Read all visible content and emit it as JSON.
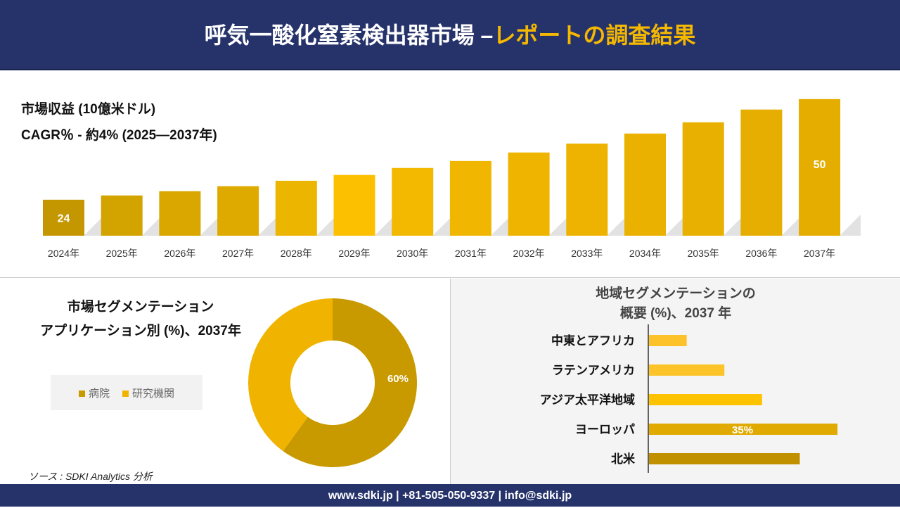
{
  "header": {
    "title_main": "呼気一酸化窒素検出器市場 –",
    "title_accent": "レポートの調査結果"
  },
  "revenue": {
    "label": "市場収益 (10億米ドル)",
    "cagr": "CAGR％ - 約4% (2025—2037年)"
  },
  "chart_data": [
    {
      "type": "bar",
      "title": "市場収益 (10億米ドル)",
      "categories": [
        "2024年",
        "2025年",
        "2026年",
        "2027年",
        "2028年",
        "2029年",
        "2030年",
        "2031年",
        "2032年",
        "2033年",
        "2034年",
        "2035年",
        "2036年",
        "2037年"
      ],
      "values": [
        24,
        25.1,
        26.2,
        27.5,
        28.9,
        30.4,
        32.2,
        34,
        36.2,
        38.5,
        41.1,
        44,
        47.3,
        50
      ],
      "data_labels": {
        "0": "24",
        "13": "50"
      },
      "colors": [
        "#c49600",
        "#d3a300",
        "#d9a700",
        "#deaa00",
        "#ecb500",
        "#fdc000",
        "#f3b800",
        "#f0b600",
        "#eeb400",
        "#edb300",
        "#eab100",
        "#e8b000",
        "#e6ae00",
        "#e4ad00"
      ]
    },
    {
      "type": "pie",
      "title": "市場セグメンテーション アプリケーション別 (%)、2037年",
      "series": [
        {
          "name": "病院",
          "value": 60,
          "label": "60%",
          "color": "#c89a00"
        },
        {
          "name": "研究機関",
          "value": 40,
          "color": "#f0b400"
        }
      ]
    },
    {
      "type": "bar",
      "orientation": "horizontal",
      "title": "地域セグメンテーションの 概要 (%)、2037 年",
      "categories": [
        "中東とアフリカ",
        "ラテンアメリカ",
        "アジア太平洋地域",
        "ヨーロッパ",
        "北米"
      ],
      "values": [
        7,
        14,
        21,
        35,
        28
      ],
      "data_labels": {
        "3": "35%"
      },
      "colors": [
        "#fdc22a",
        "#fdc42a",
        "#fec300",
        "#e0aa00",
        "#c19000"
      ]
    }
  ],
  "segment": {
    "title1": "市場セグメンテーション",
    "title2": "アプリケーション別 (%)、2037年",
    "legend": [
      "病院",
      "研究機関"
    ]
  },
  "region": {
    "title1": "地域セグメンテーションの",
    "title2": "概要 (%)、2037 年"
  },
  "source": "ソース : SDKI Analytics 分析",
  "footer": "www.sdki.jp | +81-505-050-9337 | info@sdki.jp"
}
